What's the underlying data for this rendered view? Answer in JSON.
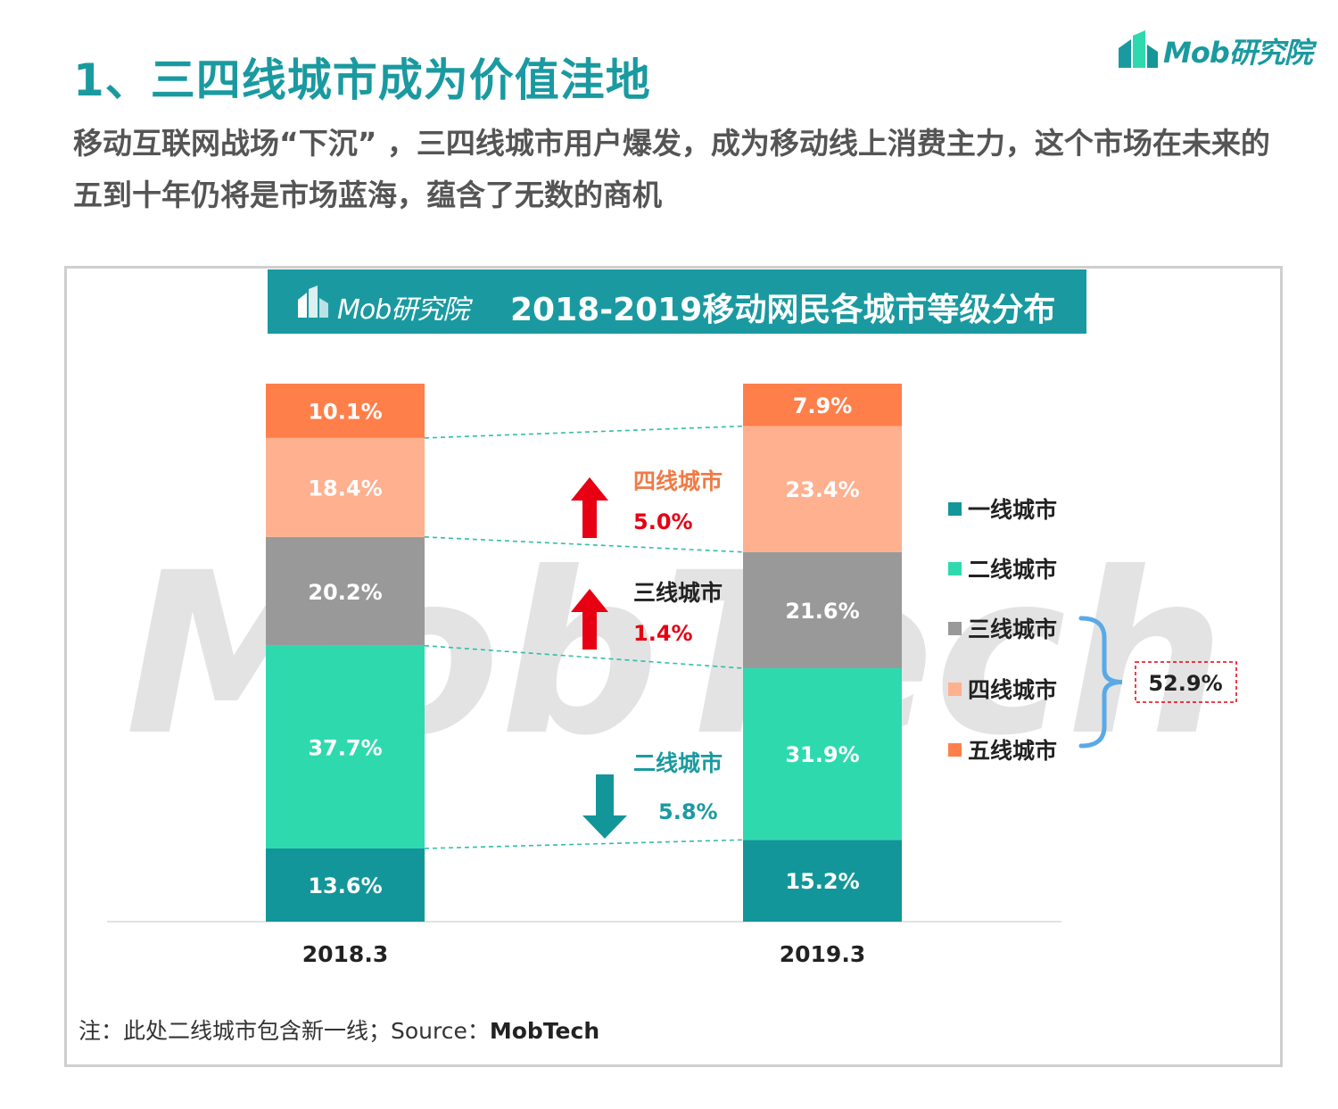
{
  "header": {
    "title": "1、三四线城市成为价值洼地",
    "subtitle": "移动互联网战场“下沉”  ，三四线城市用户爆发，成为移动线上消费主力，这个市场在未来的五到十年仍将是市场蓝海，蕴含了无数的商机",
    "brand": "Mob研究院"
  },
  "chart_header": {
    "brand": "Mob研究院",
    "title": "2018-2019移动网民各城市等级分布"
  },
  "chart_data": {
    "type": "bar",
    "stacked": true,
    "title": "2018-2019移动网民各城市等级分布",
    "categories": [
      "2018.3",
      "2019.3"
    ],
    "ylim": [
      0,
      100
    ],
    "series": [
      {
        "name": "一线城市",
        "values": [
          13.6,
          15.2
        ],
        "labels": [
          "13.6%",
          "15.2%"
        ],
        "color": "#13969a"
      },
      {
        "name": "二线城市",
        "values": [
          37.7,
          31.9
        ],
        "labels": [
          "37.7%",
          "31.9%"
        ],
        "color": "#2fd9ae"
      },
      {
        "name": "三线城市",
        "values": [
          20.2,
          21.6
        ],
        "labels": [
          "20.2%",
          "21.6%"
        ],
        "color": "#999999"
      },
      {
        "name": "四线城市",
        "values": [
          18.4,
          23.4
        ],
        "labels": [
          "18.4%",
          "23.4%"
        ],
        "color": "#ffb08f"
      },
      {
        "name": "五线城市",
        "values": [
          10.1,
          7.9
        ],
        "labels": [
          "10.1%",
          "7.9%"
        ],
        "color": "#ff7f4a"
      }
    ],
    "legend_position": "right",
    "annotations": [
      {
        "city": "四线城市",
        "change": "5.0%",
        "direction": "up",
        "city_color": "#f07a45",
        "value_color": "#e60012"
      },
      {
        "city": "三线城市",
        "change": "1.4%",
        "direction": "up",
        "city_color": "#222222",
        "value_color": "#e60012"
      },
      {
        "city": "二线城市",
        "change": "5.8%",
        "direction": "down",
        "city_color": "#1a9aa0",
        "value_color": "#1a9aa0"
      }
    ],
    "bracket_total": "52.9%",
    "watermark": "MobTech"
  },
  "footnote": {
    "note": "注：此处二线城市包含新一线；Source：",
    "source": "MobTech"
  },
  "colors": {
    "accent": "#1a9aa0",
    "up_arrow": "#e60012",
    "down_arrow": "#13969a",
    "bracket": "#5aa9e6",
    "total_box": "#e60012"
  }
}
